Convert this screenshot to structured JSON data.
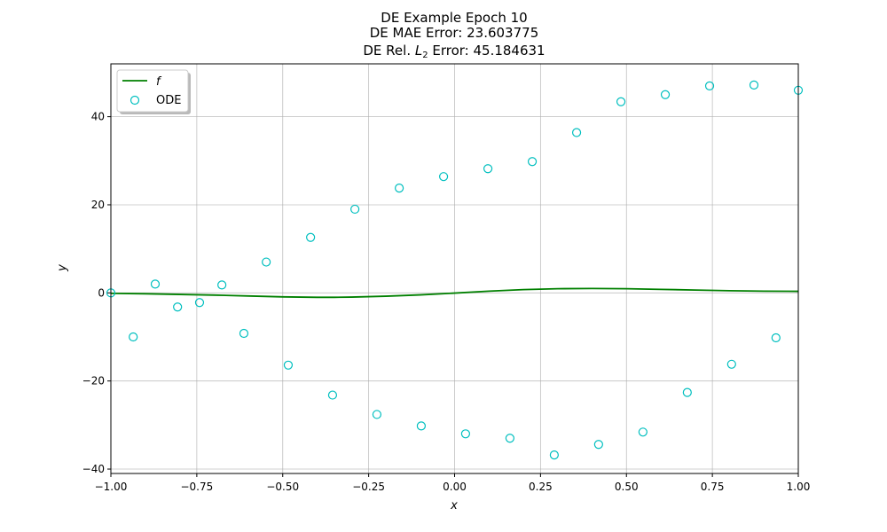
{
  "chart_data": {
    "type": "line+scatter",
    "title_lines": [
      "DE Example Epoch 10",
      "DE MAE Error: 23.603775"
    ],
    "title_l2": {
      "prefix": "DE Rel. ",
      "symbol": "L",
      "subscript": "2",
      "suffix": " Error: 45.184631"
    },
    "xlabel": "x",
    "ylabel": "y",
    "xlim": [
      -1.0,
      1.0
    ],
    "ylim": [
      -41,
      52
    ],
    "x_ticks": [
      -1.0,
      -0.75,
      -0.5,
      -0.25,
      0.0,
      0.25,
      0.5,
      0.75,
      1.0
    ],
    "x_tick_labels": [
      "−1.00",
      "−0.75",
      "−0.50",
      "−0.25",
      "0.00",
      "0.25",
      "0.50",
      "0.75",
      "1.00"
    ],
    "y_ticks": [
      -40,
      -20,
      0,
      20,
      40
    ],
    "y_tick_labels": [
      "−40",
      "−20",
      "0",
      "20",
      "40"
    ],
    "grid": true,
    "legend_position": "top-left",
    "series": [
      {
        "name": "f",
        "kind": "line",
        "color": "#008000",
        "x": [
          -1.0,
          -0.9,
          -0.8,
          -0.7,
          -0.6,
          -0.5,
          -0.4,
          -0.35,
          -0.3,
          -0.2,
          -0.1,
          0.0,
          0.1,
          0.2,
          0.3,
          0.4,
          0.5,
          0.6,
          0.7,
          0.8,
          0.9,
          1.0
        ],
        "y": [
          -0.1,
          -0.2,
          -0.35,
          -0.5,
          -0.7,
          -0.9,
          -1.0,
          -1.0,
          -0.95,
          -0.75,
          -0.45,
          -0.05,
          0.4,
          0.75,
          0.95,
          1.0,
          0.95,
          0.8,
          0.65,
          0.5,
          0.4,
          0.35
        ]
      },
      {
        "name": "ODE",
        "kind": "scatter",
        "color": "#00bfbf",
        "x": [
          -1.0,
          -0.935,
          -0.871,
          -0.806,
          -0.742,
          -0.677,
          -0.613,
          -0.548,
          -0.484,
          -0.419,
          -0.355,
          -0.29,
          -0.226,
          -0.161,
          -0.097,
          -0.032,
          0.032,
          0.097,
          0.161,
          0.226,
          0.29,
          0.355,
          0.419,
          0.484,
          0.548,
          0.613,
          0.677,
          0.742,
          0.806,
          0.871,
          0.935,
          1.0
        ],
        "y": [
          0.0,
          -10.0,
          2.0,
          -3.2,
          -2.2,
          1.8,
          -9.2,
          7.0,
          -16.4,
          12.6,
          -23.2,
          19.0,
          -27.6,
          23.8,
          -30.2,
          26.4,
          -32.0,
          28.2,
          -33.0,
          29.8,
          -36.8,
          36.4,
          -34.4,
          43.4,
          -31.6,
          45.0,
          -22.6,
          47.0,
          -16.2,
          47.2,
          -10.2,
          46.0
        ]
      }
    ]
  }
}
